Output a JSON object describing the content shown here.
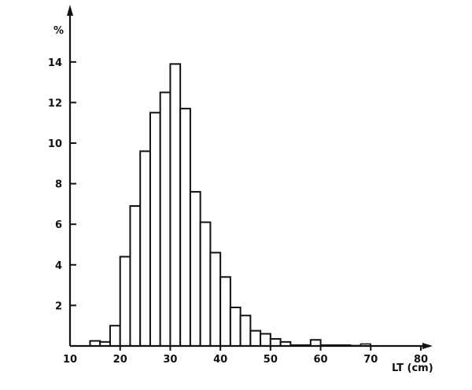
{
  "chart_data": {
    "type": "bar",
    "title": "",
    "xlabel": "LT (cm)",
    "ylabel": "%",
    "xlim": [
      10,
      80
    ],
    "ylim": [
      0,
      15
    ],
    "x_ticks": [
      10,
      20,
      30,
      40,
      50,
      60,
      70,
      80
    ],
    "y_ticks": [
      2,
      4,
      6,
      8,
      10,
      12,
      14
    ],
    "grid": false,
    "legend": null,
    "bin_width": 2,
    "categories": [
      "14-16",
      "16-18",
      "18-20",
      "20-22",
      "22-24",
      "24-26",
      "26-28",
      "28-30",
      "30-32",
      "32-34",
      "34-36",
      "36-38",
      "38-40",
      "40-42",
      "42-44",
      "44-46",
      "46-48",
      "48-50",
      "50-52",
      "52-54",
      "54-56",
      "56-58",
      "58-60",
      "60-62",
      "62-64",
      "64-66",
      "66-68",
      "68-70"
    ],
    "bin_starts": [
      14,
      16,
      18,
      20,
      22,
      24,
      26,
      28,
      30,
      32,
      34,
      36,
      38,
      40,
      42,
      44,
      46,
      48,
      50,
      52,
      54,
      56,
      58,
      60,
      62,
      64,
      66,
      68
    ],
    "values": [
      0.25,
      0.2,
      1.0,
      4.4,
      6.9,
      9.6,
      11.5,
      12.5,
      13.9,
      11.7,
      7.6,
      6.1,
      4.6,
      3.4,
      1.9,
      1.5,
      0.75,
      0.6,
      0.35,
      0.2,
      0.05,
      0.05,
      0.3,
      0.05,
      0.05,
      0.05,
      0.0,
      0.1
    ]
  },
  "axes": {
    "y_unit_label": "%",
    "x_label": "LT (cm)"
  }
}
